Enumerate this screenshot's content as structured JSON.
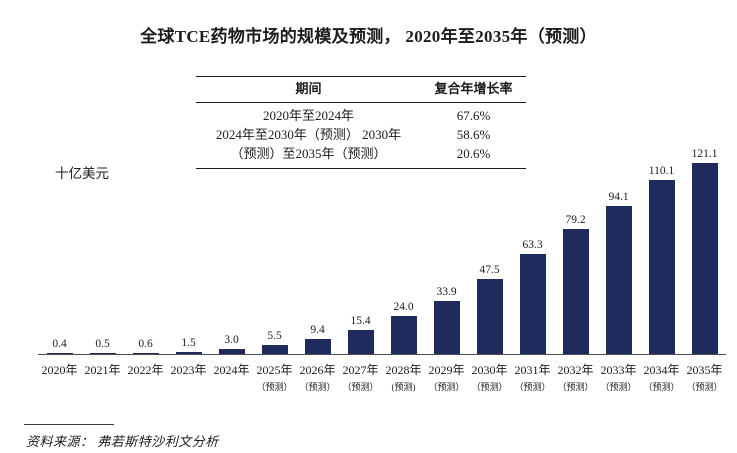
{
  "page": {
    "title": "全球TCE药物市场的规模及预测， 2020年至2035年（预测）",
    "y_axis_unit": "十亿美元",
    "source_label": "资料来源：",
    "source_text": "弗若斯特沙利文分析"
  },
  "cagr_table": {
    "header_period": "期间",
    "header_cagr": "复合年增长率",
    "rows": [
      {
        "period": "2020年至2024年",
        "cagr": "67.6%"
      },
      {
        "period": "2024年至2030年（预测） 2030年",
        "cagr": "58.6%"
      },
      {
        "period": "（预测）至2035年（预测）",
        "cagr": "20.6%"
      }
    ]
  },
  "chart_data": {
    "type": "bar",
    "title": "全球TCE药物市场的规模及预测，2020年至2035年（预测）",
    "xlabel": "",
    "ylabel": "十亿美元",
    "ylim": [
      0,
      130
    ],
    "grid": false,
    "legend_position": "none",
    "categories": [
      "2020年",
      "2021年",
      "2022年",
      "2023年",
      "2024年",
      "2025年",
      "2026年",
      "2027年",
      "2028年",
      "2029年",
      "2030年",
      "2031年",
      "2032年",
      "2033年",
      "2034年",
      "2035年"
    ],
    "forecast_notes": [
      "",
      "",
      "",
      "",
      "",
      "（预测）",
      "（预测）",
      "（预测）",
      "(预测)",
      "（预测）",
      "（预测）",
      "（预测）",
      "（预测）",
      "（预测）",
      "（预测）",
      "（预测）"
    ],
    "values": [
      0.4,
      0.5,
      0.6,
      1.5,
      3.0,
      5.5,
      9.4,
      15.4,
      24.0,
      33.9,
      47.5,
      63.3,
      79.2,
      94.1,
      110.1,
      121.1
    ],
    "value_labels": [
      "0.4",
      "0.5",
      "0.6",
      "1.5",
      "3.0",
      "5.5",
      "9.4",
      "15.4",
      "24.0",
      "33.9",
      "47.5",
      "63.3",
      "79.2",
      "94.1",
      "110.1",
      "121.1"
    ],
    "bar_color": "#1F2B5C",
    "axis_color": "#4d4d4d"
  }
}
